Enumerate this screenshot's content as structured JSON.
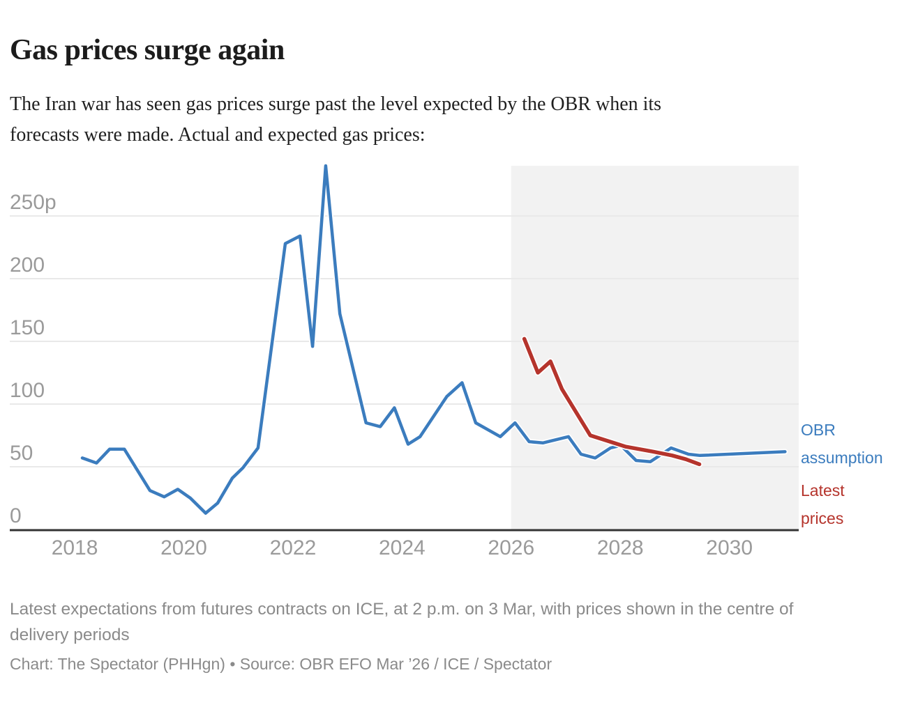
{
  "header": {
    "title": "Gas prices surge again",
    "subtitle": "The Iran war has seen gas prices surge past the level expected by the OBR when its\nforecasts were made. Actual and expected gas prices:"
  },
  "footer": {
    "notes": "Latest expectations from futures contracts on ICE, at 2 p.m. on 3 Mar, with prices shown in the centre of\ndelivery periods",
    "credit": "Chart: The Spectator (PHHgn) • Source: OBR EFO Mar ’26 / ICE / Spectator"
  },
  "colors": {
    "background": "#ffffff",
    "forecast_shade": "#f2f2f2",
    "gridline": "#e9e9e9",
    "axis_line": "#333333",
    "tick_text": "#9a9a9a",
    "blue": "#3b7cbe",
    "red": "#b5342c"
  },
  "chart_data": {
    "type": "line",
    "title": "Gas prices surge again",
    "unit": "p",
    "grid": "horizontal",
    "legend_position": "right-annotations",
    "x_axis": {
      "min": 2016.81,
      "max": 2031.27,
      "ticks": [
        2018,
        2020,
        2022,
        2024,
        2026,
        2028,
        2030
      ]
    },
    "y_axis": {
      "min": 0,
      "max": 290,
      "ticks": [
        0,
        50,
        100,
        150,
        200,
        250
      ],
      "tick_labels": [
        "0",
        "50",
        "100",
        "150",
        "200",
        "250p"
      ]
    },
    "forecast_shading": {
      "from": 2026.0,
      "to": 2031.27
    },
    "series": [
      {
        "name": "OBR assumption",
        "annotation": "OBR\nassumption",
        "color": "#3b7cbe",
        "stroke_width": 4.5,
        "points": [
          [
            2018.14,
            57
          ],
          [
            2018.4,
            53
          ],
          [
            2018.64,
            64
          ],
          [
            2018.91,
            64
          ],
          [
            2019.38,
            31
          ],
          [
            2019.64,
            26
          ],
          [
            2019.89,
            32
          ],
          [
            2020.12,
            25
          ],
          [
            2020.4,
            13
          ],
          [
            2020.62,
            21
          ],
          [
            2020.89,
            41
          ],
          [
            2021.08,
            49
          ],
          [
            2021.36,
            65
          ],
          [
            2021.86,
            228
          ],
          [
            2022.13,
            234
          ],
          [
            2022.36,
            146
          ],
          [
            2022.6,
            290
          ],
          [
            2022.86,
            172
          ],
          [
            2023.34,
            85
          ],
          [
            2023.6,
            82
          ],
          [
            2023.86,
            97
          ],
          [
            2024.11,
            68
          ],
          [
            2024.33,
            74
          ],
          [
            2024.82,
            106
          ],
          [
            2025.1,
            117
          ],
          [
            2025.35,
            85
          ],
          [
            2025.8,
            74
          ],
          [
            2026.07,
            85
          ],
          [
            2026.33,
            70
          ],
          [
            2026.58,
            69
          ],
          [
            2027.05,
            74
          ],
          [
            2027.28,
            60
          ],
          [
            2027.54,
            57
          ],
          [
            2027.82,
            65
          ],
          [
            2028.01,
            67
          ],
          [
            2028.29,
            55
          ],
          [
            2028.55,
            54
          ],
          [
            2028.93,
            65
          ],
          [
            2029.25,
            60
          ],
          [
            2029.46,
            59
          ],
          [
            2031.02,
            62
          ]
        ]
      },
      {
        "name": "Latest prices",
        "annotation": "Latest\nprices",
        "color": "#b5342c",
        "stroke_width": 5.5,
        "points": [
          [
            2026.24,
            152
          ],
          [
            2026.49,
            125
          ],
          [
            2026.72,
            134
          ],
          [
            2026.93,
            112
          ],
          [
            2027.45,
            75
          ],
          [
            2028.1,
            66
          ],
          [
            2028.61,
            62
          ],
          [
            2028.95,
            59
          ],
          [
            2029.2,
            56
          ],
          [
            2029.45,
            52
          ]
        ]
      }
    ]
  }
}
